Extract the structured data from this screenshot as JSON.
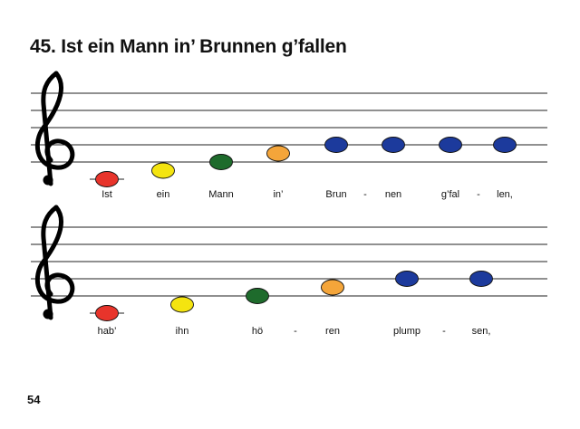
{
  "title": "45. Ist ein Mann in’ Brunnen g’fallen",
  "page_number": "54",
  "colors": {
    "red": "#e8342b",
    "yellow": "#f4e410",
    "green": "#1e6b2c",
    "orange": "#f4a53a",
    "blue": "#1c3a9c"
  },
  "systems": [
    {
      "clef": "treble-clef-icon",
      "notes": [
        {
          "pitch": "C4",
          "color": "red"
        },
        {
          "pitch": "D4",
          "color": "yellow"
        },
        {
          "pitch": "E4",
          "color": "green"
        },
        {
          "pitch": "F4",
          "color": "orange"
        },
        {
          "pitch": "G4",
          "color": "blue"
        },
        {
          "pitch": "G4",
          "color": "blue"
        },
        {
          "pitch": "G4",
          "color": "blue"
        },
        {
          "pitch": "G4",
          "color": "blue"
        }
      ],
      "lyrics": [
        "Ist",
        "ein",
        "Mann",
        "in’",
        "Brun",
        "-",
        "nen",
        "g’fal",
        "-",
        "len,"
      ]
    },
    {
      "clef": "treble-clef-icon",
      "notes": [
        {
          "pitch": "C4",
          "color": "red"
        },
        {
          "pitch": "D4",
          "color": "yellow"
        },
        {
          "pitch": "E4",
          "color": "green"
        },
        {
          "pitch": "F4",
          "color": "orange"
        },
        {
          "pitch": "G4",
          "color": "blue"
        },
        {
          "pitch": "G4",
          "color": "blue"
        }
      ],
      "lyrics": [
        "hab’",
        "ihn",
        "hö",
        "-",
        "ren",
        "plump",
        "-",
        "sen,"
      ]
    }
  ]
}
